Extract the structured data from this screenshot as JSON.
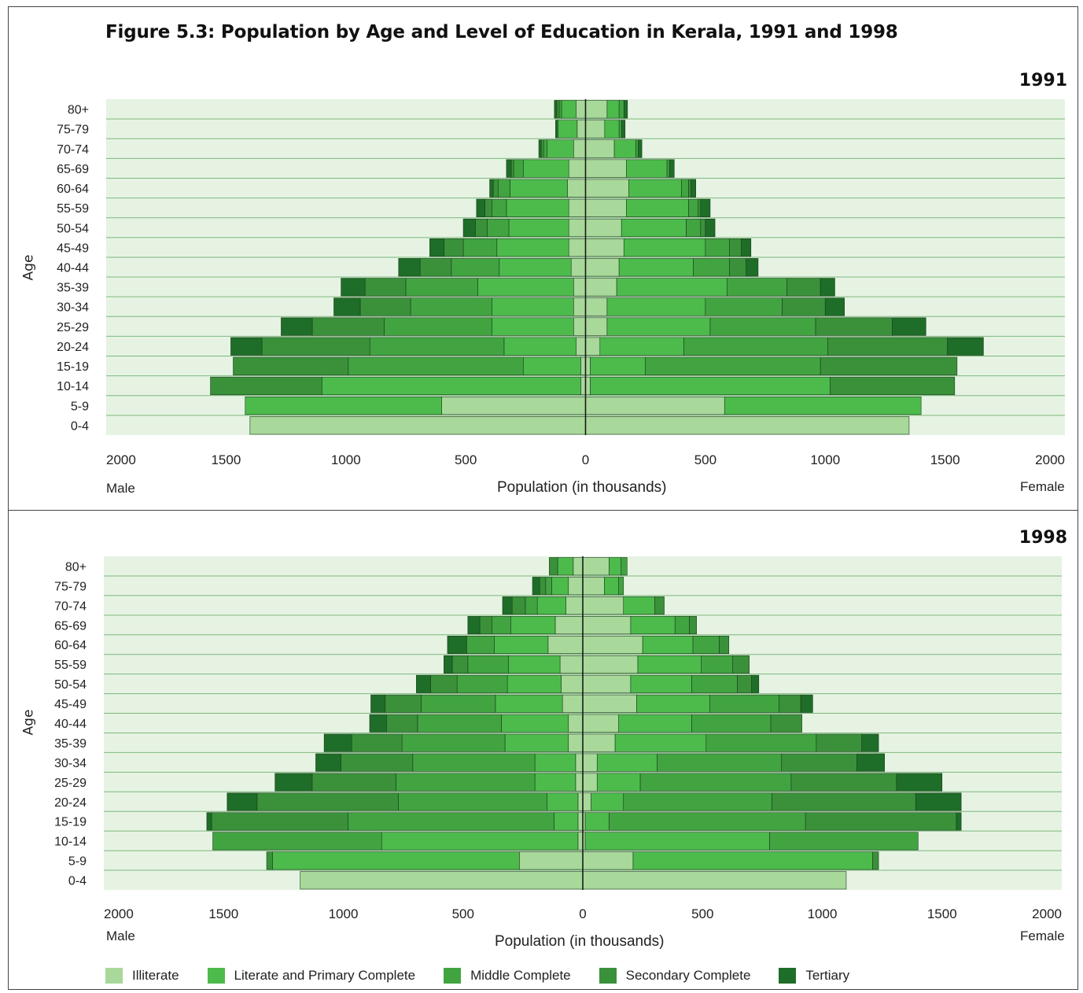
{
  "title": "Figure 5.3: Population by Age and Level of Education in Kerala, 1991 and 1998",
  "axis": {
    "xlabel": "Population (in thousands)",
    "ylabel": "Age",
    "left_label": "Male",
    "right_label": "Female",
    "ticks": [
      "2000",
      "1500",
      "1000",
      "500",
      "0",
      "500",
      "1000",
      "1500",
      "2000"
    ]
  },
  "colors": {
    "background": "#e6f3e3",
    "grid": "#7cb87c",
    "Illiterate": "#a8d89a",
    "Literate and Primary Complete": "#4cbb4c",
    "Middle Complete": "#41a441",
    "Secondary Complete": "#3a913a",
    "Tertiary": "#1e6d28",
    "outline": "#1a3a1a"
  },
  "legend": [
    "Illiterate",
    "Literate and Primary Complete",
    "Middle Complete",
    "Secondary Complete",
    "Tertiary"
  ],
  "chart_data": [
    {
      "type": "bar",
      "title": "1991",
      "orientation": "horizontal-pyramid",
      "categories": [
        "80+",
        "75-79",
        "70-74",
        "65-69",
        "60-64",
        "55-59",
        "50-54",
        "45-49",
        "40-44",
        "35-39",
        "30-34",
        "25-29",
        "20-24",
        "15-19",
        "10-14",
        "5-9",
        "0-4"
      ],
      "xlim": [
        -2000,
        2000
      ],
      "male": {
        "Illiterate": [
          40,
          35,
          50,
          70,
          75,
          70,
          70,
          70,
          60,
          50,
          50,
          50,
          40,
          20,
          20,
          600,
          1400
        ],
        "Literate and Primary Complete": [
          60,
          80,
          110,
          190,
          240,
          260,
          250,
          300,
          300,
          400,
          340,
          340,
          300,
          240,
          1080,
          820,
          0
        ],
        "Middle Complete": [
          10,
          5,
          15,
          40,
          50,
          60,
          90,
          140,
          200,
          300,
          340,
          450,
          560,
          730,
          0,
          0,
          0
        ],
        "Secondary Complete": [
          10,
          0,
          10,
          10,
          20,
          30,
          50,
          80,
          130,
          170,
          210,
          300,
          450,
          480,
          465,
          0,
          0
        ],
        "Tertiary": [
          10,
          5,
          10,
          20,
          15,
          35,
          50,
          60,
          90,
          100,
          110,
          130,
          130,
          0,
          0,
          0,
          0
        ]
      },
      "female": {
        "Illiterate": [
          90,
          80,
          120,
          170,
          180,
          170,
          150,
          160,
          140,
          130,
          90,
          90,
          60,
          20,
          20,
          580,
          1350
        ],
        "Literate and Primary Complete": [
          50,
          60,
          90,
          170,
          220,
          260,
          270,
          340,
          310,
          460,
          410,
          430,
          350,
          230,
          1000,
          820,
          0
        ],
        "Middle Complete": [
          20,
          10,
          10,
          10,
          30,
          40,
          60,
          100,
          150,
          250,
          320,
          440,
          600,
          730,
          0,
          0,
          0
        ],
        "Secondary Complete": [
          0,
          0,
          0,
          0,
          10,
          10,
          20,
          50,
          70,
          140,
          180,
          320,
          500,
          570,
          520,
          0,
          0
        ],
        "Tertiary": [
          15,
          15,
          15,
          20,
          20,
          40,
          40,
          40,
          50,
          60,
          80,
          140,
          150,
          0,
          0,
          0,
          0
        ]
      }
    },
    {
      "type": "bar",
      "title": "1998",
      "orientation": "horizontal-pyramid",
      "categories": [
        "80+",
        "75-79",
        "70-74",
        "65-69",
        "60-64",
        "55-59",
        "50-54",
        "45-49",
        "40-44",
        "35-39",
        "30-34",
        "25-29",
        "20-24",
        "15-19",
        "10-14",
        "5-9",
        "0-4"
      ],
      "xlim": [
        -2000,
        2000
      ],
      "male": {
        "Illiterate": [
          40,
          60,
          70,
          115,
          145,
          95,
          90,
          85,
          60,
          60,
          30,
          30,
          20,
          20,
          20,
          265,
          1180
        ],
        "Literate and Primary Complete": [
          65,
          70,
          120,
          185,
          225,
          215,
          225,
          280,
          280,
          265,
          170,
          170,
          130,
          100,
          820,
          1030,
          0
        ],
        "Middle Complete": [
          0,
          25,
          50,
          80,
          115,
          170,
          210,
          310,
          350,
          430,
          510,
          580,
          620,
          860,
          705,
          0,
          0
        ],
        "Secondary Complete": [
          35,
          25,
          55,
          50,
          0,
          65,
          110,
          150,
          130,
          210,
          300,
          350,
          590,
          570,
          0,
          25,
          0
        ],
        "Tertiary": [
          0,
          30,
          40,
          50,
          80,
          35,
          60,
          60,
          70,
          115,
          105,
          155,
          125,
          20,
          0,
          0,
          0
        ]
      },
      "female": {
        "Illiterate": [
          110,
          90,
          170,
          200,
          250,
          230,
          200,
          225,
          150,
          135,
          60,
          60,
          35,
          10,
          10,
          210,
          1100
        ],
        "Literate and Primary Complete": [
          50,
          60,
          130,
          185,
          210,
          265,
          255,
          305,
          305,
          380,
          250,
          180,
          135,
          100,
          770,
          1000,
          0
        ],
        "Middle Complete": [
          25,
          20,
          0,
          60,
          110,
          130,
          190,
          290,
          330,
          460,
          520,
          630,
          620,
          820,
          620,
          0,
          0
        ],
        "Secondary Complete": [
          0,
          0,
          40,
          30,
          40,
          70,
          60,
          90,
          130,
          190,
          315,
          440,
          600,
          630,
          0,
          25,
          0
        ],
        "Tertiary": [
          0,
          0,
          0,
          0,
          0,
          0,
          30,
          50,
          0,
          70,
          115,
          190,
          190,
          20,
          0,
          0,
          0
        ]
      }
    }
  ]
}
